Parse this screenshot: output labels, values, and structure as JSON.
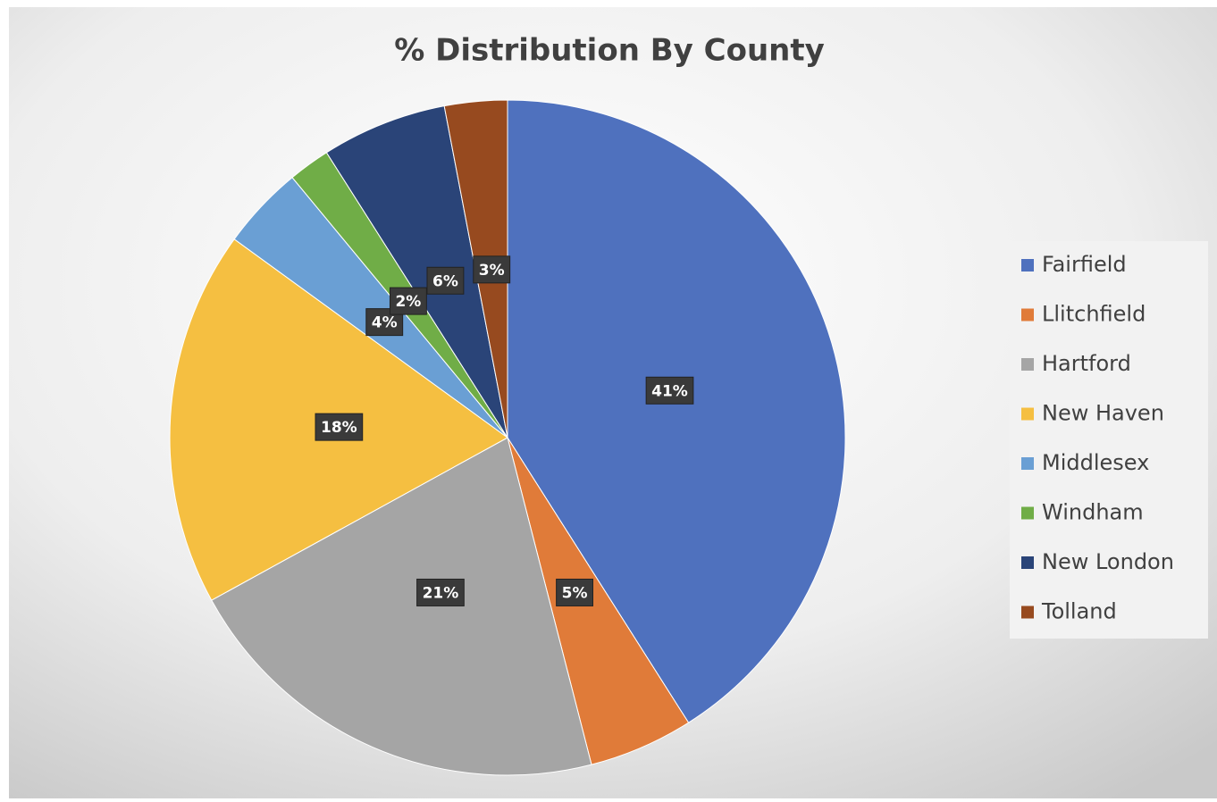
{
  "chart_data": {
    "type": "pie",
    "title": "% Distribution By County",
    "categories": [
      "Fairfield",
      "Llitchfield",
      "Hartford",
      "New Haven",
      "Middlesex",
      "Windham",
      "New London",
      "Tolland"
    ],
    "values": [
      41,
      5,
      21,
      18,
      4,
      2,
      6,
      3
    ],
    "value_labels": [
      "41%",
      "5%",
      "21%",
      "18%",
      "4%",
      "2%",
      "6%",
      "3%"
    ],
    "colors": [
      "#4f71be",
      "#e07b39",
      "#a5a5a5",
      "#f5bf41",
      "#6a9fd4",
      "#70ad47",
      "#2a4478",
      "#974a1f"
    ],
    "legend": "right"
  }
}
